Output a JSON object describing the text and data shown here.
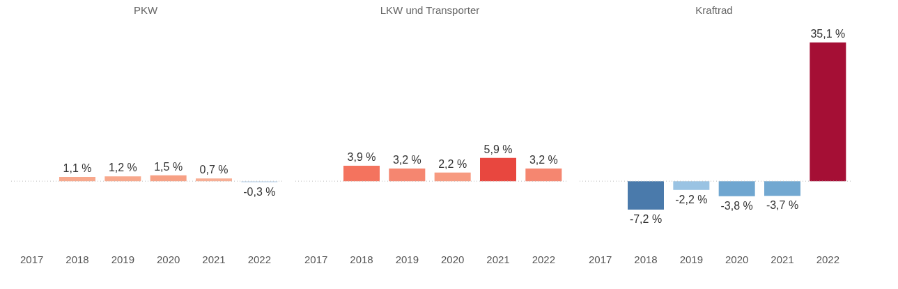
{
  "chart_data": [
    {
      "type": "bar",
      "title": "PKW",
      "categories": [
        "2017",
        "2018",
        "2019",
        "2020",
        "2021",
        "2022"
      ],
      "values": [
        null,
        1.1,
        1.2,
        1.5,
        0.7,
        -0.3
      ],
      "colors": [
        "#cccccc",
        "#f8a88c",
        "#f8a88c",
        "#f7a084",
        "#f8ae94",
        "#c6dbef"
      ],
      "value_labels": [
        null,
        "1,1 %",
        "1,2 %",
        "1,5 %",
        "0,7 %",
        "-0,3 %"
      ],
      "ref_lines": [
        {
          "axis": "y",
          "value": 0,
          "color": "#bbbbbb",
          "line_style": "dotted"
        }
      ],
      "tick_labels": "x",
      "grid": false,
      "legend": false
    },
    {
      "type": "bar",
      "title": "LKW und Transporter",
      "categories": [
        "2017",
        "2018",
        "2019",
        "2020",
        "2021",
        "2022"
      ],
      "values": [
        null,
        3.9,
        3.2,
        2.2,
        5.9,
        3.2
      ],
      "colors": [
        "#cccccc",
        "#f4735e",
        "#f58670",
        "#f79a80",
        "#e8473f",
        "#f58670"
      ],
      "value_labels": [
        null,
        "3,9 %",
        "3,2 %",
        "2,2 %",
        "5,9 %",
        "3,2 %"
      ],
      "ref_lines": [
        {
          "axis": "y",
          "value": 0,
          "color": "#bbbbbb",
          "line_style": "dotted"
        }
      ],
      "tick_labels": "x",
      "grid": false,
      "legend": false
    },
    {
      "type": "bar",
      "title": "Kraftrad",
      "categories": [
        "2017",
        "2018",
        "2019",
        "2020",
        "2021",
        "2022"
      ],
      "values": [
        null,
        -7.2,
        -2.2,
        -3.8,
        -3.7,
        35.1
      ],
      "colors": [
        "#cccccc",
        "#4a7aab",
        "#9ac3e3",
        "#6fa6d0",
        "#72a8d1",
        "#a50f35"
      ],
      "value_labels": [
        null,
        "-7,2 %",
        "-2,2 %",
        "-3,8 %",
        "-3,7 %",
        "35,1 %"
      ],
      "ref_lines": [
        {
          "axis": "y",
          "value": 0,
          "color": "#bbbbbb",
          "line_style": "dotted"
        }
      ],
      "tick_labels": "x",
      "grid": false,
      "legend": false
    }
  ]
}
